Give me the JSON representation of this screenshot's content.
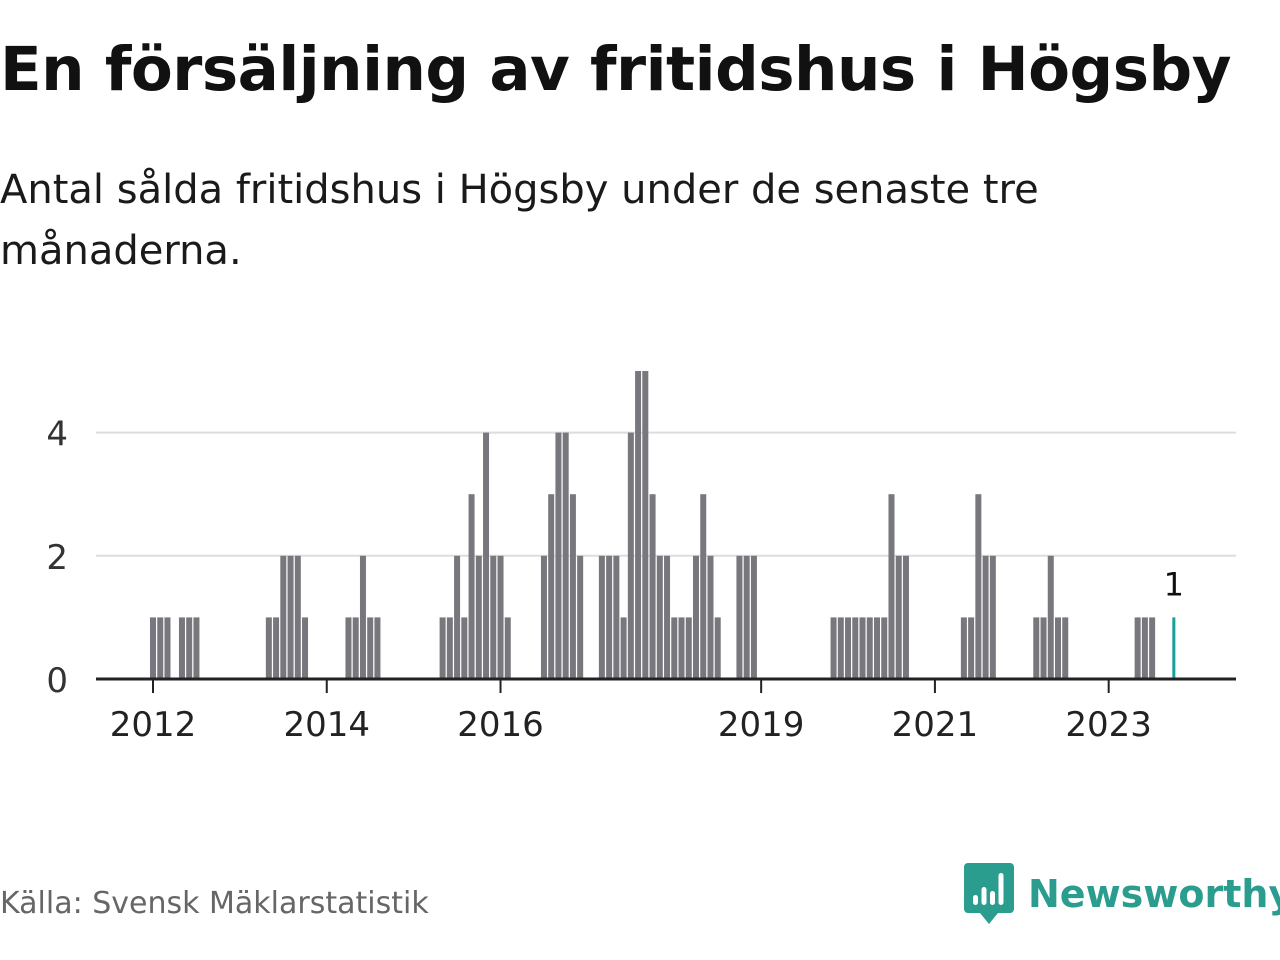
{
  "title": "En försäljning av fritidshus i Högsby",
  "subtitle": "Antal sålda fritidshus i Högsby under de senaste tre månaderna.",
  "source": "Källa: Svensk Mäklarstatistik",
  "brand": {
    "name": "Newsworthy",
    "icon": "bar-chart-logo-icon"
  },
  "colors": {
    "bar": "#77777d",
    "highlight": "#1a9e96",
    "grid": "#dddddd",
    "axis": "#222222",
    "brand": "#2a9d8f"
  },
  "chart_data": {
    "type": "bar",
    "ylim": [
      0,
      5
    ],
    "yticks": [
      0,
      2,
      4
    ],
    "xticks": [
      {
        "label": "2012",
        "x": "2012-01"
      },
      {
        "label": "2014",
        "x": "2014-01"
      },
      {
        "label": "2016",
        "x": "2016-01"
      },
      {
        "label": "2019",
        "x": "2019-01"
      },
      {
        "label": "2021",
        "x": "2021-01"
      },
      {
        "label": "2023",
        "x": "2023-01"
      }
    ],
    "grid": true,
    "highlight_label": "1",
    "data": [
      {
        "x": "2012-01",
        "y": 1
      },
      {
        "x": "2012-02",
        "y": 1
      },
      {
        "x": "2012-03",
        "y": 1
      },
      {
        "x": "2012-05",
        "y": 1
      },
      {
        "x": "2012-06",
        "y": 1
      },
      {
        "x": "2012-07",
        "y": 1
      },
      {
        "x": "2013-05",
        "y": 1
      },
      {
        "x": "2013-06",
        "y": 1
      },
      {
        "x": "2013-07",
        "y": 2
      },
      {
        "x": "2013-08",
        "y": 2
      },
      {
        "x": "2013-09",
        "y": 2
      },
      {
        "x": "2013-10",
        "y": 1
      },
      {
        "x": "2014-04",
        "y": 1
      },
      {
        "x": "2014-05",
        "y": 1
      },
      {
        "x": "2014-06",
        "y": 2
      },
      {
        "x": "2014-07",
        "y": 1
      },
      {
        "x": "2014-08",
        "y": 1
      },
      {
        "x": "2015-05",
        "y": 1
      },
      {
        "x": "2015-06",
        "y": 1
      },
      {
        "x": "2015-07",
        "y": 2
      },
      {
        "x": "2015-08",
        "y": 1
      },
      {
        "x": "2015-09",
        "y": 3
      },
      {
        "x": "2015-10",
        "y": 2
      },
      {
        "x": "2015-11",
        "y": 4
      },
      {
        "x": "2015-12",
        "y": 2
      },
      {
        "x": "2016-01",
        "y": 2
      },
      {
        "x": "2016-02",
        "y": 1
      },
      {
        "x": "2016-07",
        "y": 2
      },
      {
        "x": "2016-08",
        "y": 3
      },
      {
        "x": "2016-09",
        "y": 4
      },
      {
        "x": "2016-10",
        "y": 4
      },
      {
        "x": "2016-11",
        "y": 3
      },
      {
        "x": "2016-12",
        "y": 2
      },
      {
        "x": "2017-03",
        "y": 2
      },
      {
        "x": "2017-04",
        "y": 2
      },
      {
        "x": "2017-05",
        "y": 2
      },
      {
        "x": "2017-06",
        "y": 1
      },
      {
        "x": "2017-07",
        "y": 4
      },
      {
        "x": "2017-08",
        "y": 5
      },
      {
        "x": "2017-09",
        "y": 5
      },
      {
        "x": "2017-10",
        "y": 3
      },
      {
        "x": "2017-11",
        "y": 2
      },
      {
        "x": "2017-12",
        "y": 2
      },
      {
        "x": "2018-01",
        "y": 1
      },
      {
        "x": "2018-02",
        "y": 1
      },
      {
        "x": "2018-03",
        "y": 1
      },
      {
        "x": "2018-04",
        "y": 2
      },
      {
        "x": "2018-05",
        "y": 3
      },
      {
        "x": "2018-06",
        "y": 2
      },
      {
        "x": "2018-07",
        "y": 1
      },
      {
        "x": "2018-10",
        "y": 2
      },
      {
        "x": "2018-11",
        "y": 2
      },
      {
        "x": "2018-12",
        "y": 2
      },
      {
        "x": "2019-11",
        "y": 1
      },
      {
        "x": "2019-12",
        "y": 1
      },
      {
        "x": "2020-01",
        "y": 1
      },
      {
        "x": "2020-02",
        "y": 1
      },
      {
        "x": "2020-03",
        "y": 1
      },
      {
        "x": "2020-04",
        "y": 1
      },
      {
        "x": "2020-05",
        "y": 1
      },
      {
        "x": "2020-06",
        "y": 1
      },
      {
        "x": "2020-07",
        "y": 3
      },
      {
        "x": "2020-08",
        "y": 2
      },
      {
        "x": "2020-09",
        "y": 2
      },
      {
        "x": "2021-05",
        "y": 1
      },
      {
        "x": "2021-06",
        "y": 1
      },
      {
        "x": "2021-07",
        "y": 3
      },
      {
        "x": "2021-08",
        "y": 2
      },
      {
        "x": "2021-09",
        "y": 2
      },
      {
        "x": "2022-03",
        "y": 1
      },
      {
        "x": "2022-04",
        "y": 1
      },
      {
        "x": "2022-05",
        "y": 2
      },
      {
        "x": "2022-06",
        "y": 1
      },
      {
        "x": "2022-07",
        "y": 1
      },
      {
        "x": "2023-05",
        "y": 1
      },
      {
        "x": "2023-06",
        "y": 1
      },
      {
        "x": "2023-07",
        "y": 1
      },
      {
        "x": "2023-10",
        "y": 1,
        "highlight": true
      }
    ]
  }
}
